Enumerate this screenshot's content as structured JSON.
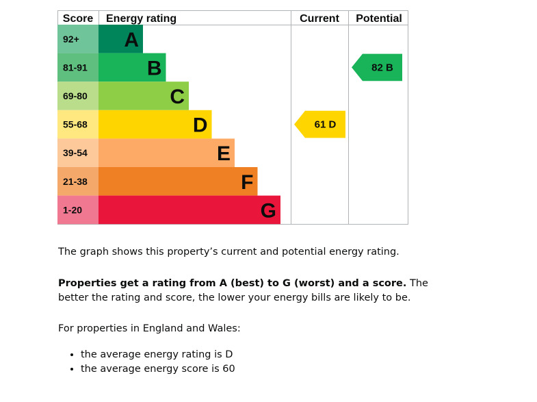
{
  "chart_data": {
    "type": "bar",
    "headers": {
      "score": "Score",
      "rating": "Energy rating",
      "current": "Current",
      "potential": "Potential"
    },
    "bands": [
      {
        "range": "92+",
        "letter": "A",
        "color": "#00855a",
        "label_color": "#6fc49a"
      },
      {
        "range": "81-91",
        "letter": "B",
        "color": "#19b459",
        "label_color": "#5fbf7f"
      },
      {
        "range": "69-80",
        "letter": "C",
        "color": "#8dce46",
        "label_color": "#b9dd8a"
      },
      {
        "range": "55-68",
        "letter": "D",
        "color": "#ffd500",
        "label_color": "#ffe880"
      },
      {
        "range": "39-54",
        "letter": "E",
        "color": "#fcaa65",
        "label_color": "#fdc99b"
      },
      {
        "range": "21-38",
        "letter": "F",
        "color": "#ef8023",
        "label_color": "#f4a96b"
      },
      {
        "range": "1-20",
        "letter": "G",
        "color": "#e9153b",
        "label_color": "#f07891"
      }
    ],
    "current": {
      "score": "61",
      "letter": "D",
      "label": "61 D",
      "color": "#ffd500"
    },
    "potential": {
      "score": "82",
      "letter": "B",
      "label": "82 B",
      "color": "#19b459"
    }
  },
  "text": {
    "intro": "The graph shows this property’s current and potential energy rating.",
    "bold_sentence": "Properties get a rating from A (best) to G (worst) and a score.",
    "rest_sentence": " The better the rating and score, the lower your energy bills are likely to be.",
    "region": "For properties in England and Wales:",
    "bullets": [
      "the average energy rating is D",
      "the average energy score is 60"
    ]
  }
}
